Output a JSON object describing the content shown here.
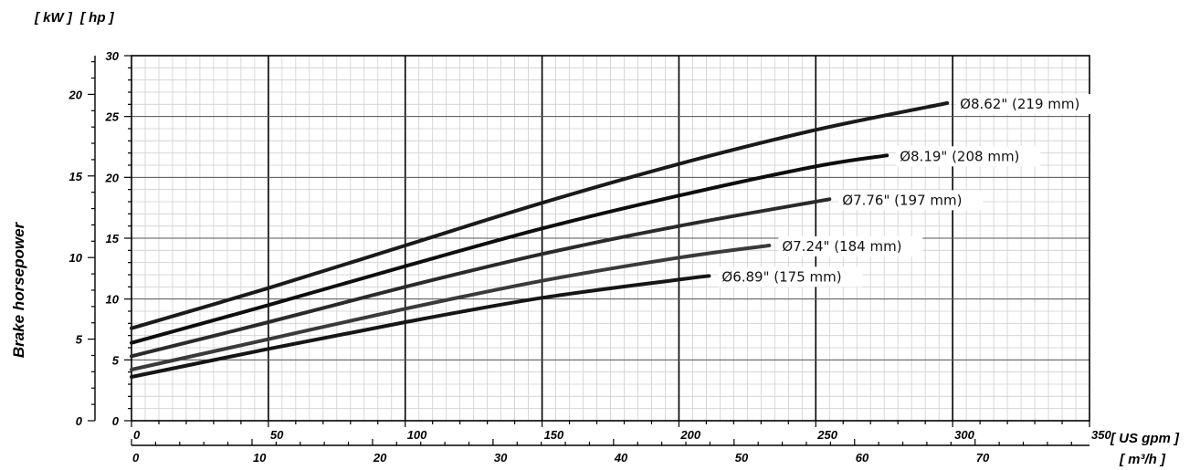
{
  "chart_data": {
    "type": "line",
    "title": "",
    "ylabel": "Brake horsepower",
    "y_units_left": "[ kW ]",
    "y_units_right": "[ hp ]",
    "x_units_primary": "[ US gpm ]",
    "x_units_secondary": "[ m³/h ]",
    "xlim_gpm": [
      0,
      350
    ],
    "ylim_hp": [
      0,
      30
    ],
    "x_ticks_gpm": [
      "0",
      "50",
      "100",
      "150",
      "200",
      "250",
      "300",
      "350"
    ],
    "x_ticks_m3h": [
      "0",
      "10",
      "20",
      "30",
      "40",
      "50",
      "60",
      "70"
    ],
    "y_ticks_hp": [
      "0",
      "5",
      "10",
      "15",
      "20",
      "25",
      "30"
    ],
    "y_ticks_kw": [
      "0",
      "5",
      "10",
      "15",
      "20"
    ],
    "grid": true,
    "series": [
      {
        "name": "Ø8.62\" (219 mm)",
        "x": [
          0,
          50,
          100,
          150,
          200,
          250,
          298
        ],
        "y": [
          7.6,
          10.9,
          14.4,
          17.9,
          21.1,
          23.9,
          26.1
        ]
      },
      {
        "name": "Ø8.19\" (208 mm)",
        "x": [
          0,
          50,
          100,
          150,
          200,
          250,
          276
        ],
        "y": [
          6.4,
          9.5,
          12.7,
          15.8,
          18.5,
          20.9,
          21.8
        ]
      },
      {
        "name": "Ø7.76\" (197 mm)",
        "x": [
          0,
          50,
          100,
          150,
          200,
          255
        ],
        "y": [
          5.3,
          8.1,
          11.0,
          13.7,
          16.0,
          18.2
        ]
      },
      {
        "name": "Ø7.24\" (184 mm)",
        "x": [
          0,
          50,
          100,
          150,
          200,
          233
        ],
        "y": [
          4.2,
          6.7,
          9.2,
          11.5,
          13.4,
          14.4
        ]
      },
      {
        "name": "Ø6.89\" (175 mm)",
        "x": [
          0,
          50,
          100,
          150,
          200,
          211
        ],
        "y": [
          3.6,
          5.9,
          8.1,
          10.1,
          11.6,
          11.9
        ]
      }
    ]
  }
}
